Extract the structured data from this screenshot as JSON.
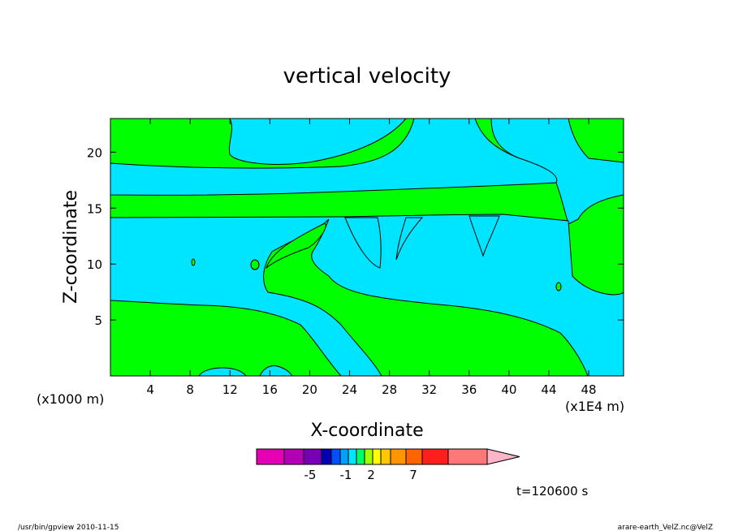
{
  "chart_data": {
    "type": "heatmap",
    "title": "vertical velocity",
    "xlabel": "X-coordinate",
    "ylabel": "Z-coordinate",
    "x_unit_left": "(x1000 m)",
    "x_unit_right": "(x1E4 m)",
    "xlim": [
      0,
      51.5
    ],
    "ylim": [
      0,
      23
    ],
    "xticks": [
      4,
      8,
      12,
      16,
      20,
      24,
      28,
      32,
      36,
      40,
      44,
      48
    ],
    "yticks": [
      5,
      10,
      15,
      20
    ],
    "contour_levels": [
      {
        "level": "bg",
        "color": "#00ff00"
      },
      {
        "level": "low",
        "color": "#00e5ff"
      }
    ],
    "colorbar": {
      "colors": [
        "#e600b4",
        "#b400b4",
        "#7800b4",
        "#0000b4",
        "#0050ff",
        "#00a0ff",
        "#00e5ff",
        "#00ff64",
        "#a0ff00",
        "#ffff00",
        "#ffc800",
        "#ff9600",
        "#ff6400",
        "#ff1e1e",
        "#ff7878",
        "#ffb4c8"
      ],
      "labels": [
        {
          "text": "-5",
          "at": -5
        },
        {
          "text": "-1",
          "at": -1
        },
        {
          "text": "2",
          "at": 2
        },
        {
          "text": "7",
          "at": 7
        }
      ]
    },
    "grid": false
  },
  "annotations": {
    "time": "t=120600 s",
    "footer_left": "/usr/bin/gpview   2010-11-15",
    "footer_right": "arare-earth_VelZ.nc@VelZ"
  }
}
